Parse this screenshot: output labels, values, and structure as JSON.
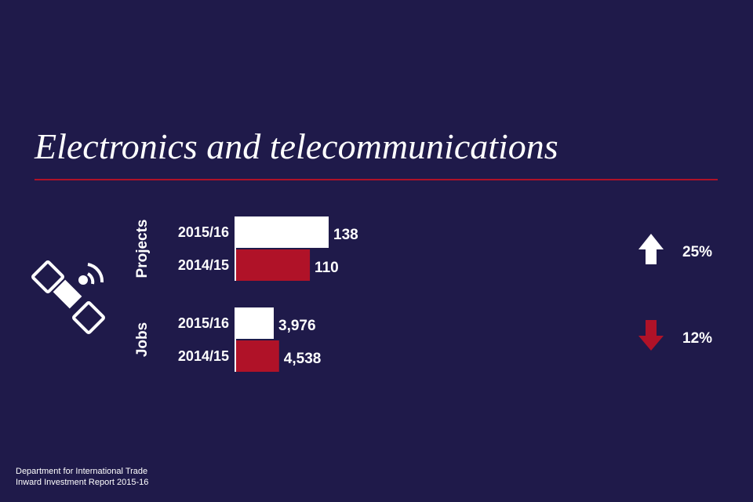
{
  "title": "Electronics and telecommunications",
  "footer": {
    "line1": "Department for International Trade",
    "line2": "Inward Investment Report 2015-16"
  },
  "icon": "satellite-icon",
  "colors": {
    "background": "#1f1a4a",
    "current": "#ffffff",
    "previous": "#b01228",
    "up_arrow": "#ffffff",
    "down_arrow": "#b01228"
  },
  "chart_data": {
    "type": "bar",
    "orientation": "horizontal",
    "groups": [
      {
        "name": "Projects",
        "bars": [
          {
            "label": "2015/16",
            "value": 138,
            "display": "138"
          },
          {
            "label": "2014/15",
            "value": 110,
            "display": "110"
          }
        ],
        "change": {
          "direction": "up",
          "label": "25%"
        }
      },
      {
        "name": "Jobs",
        "bars": [
          {
            "label": "2015/16",
            "value": 3976,
            "display": "3,976"
          },
          {
            "label": "2014/15",
            "value": 4538,
            "display": "4,538"
          }
        ],
        "change": {
          "direction": "down",
          "label": "12%"
        }
      }
    ]
  }
}
